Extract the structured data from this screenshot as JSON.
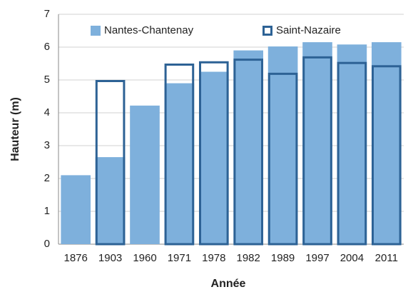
{
  "chart_data": {
    "type": "bar",
    "categories": [
      "1876",
      "1903",
      "1960",
      "1971",
      "1978",
      "1982",
      "1989",
      "1997",
      "2004",
      "2011"
    ],
    "series": [
      {
        "name": "Nantes-Chantenay",
        "color": "#7eb0dc",
        "style": "filled",
        "values": [
          2.1,
          2.65,
          4.22,
          4.9,
          5.25,
          5.9,
          6.02,
          6.15,
          6.08,
          6.15
        ]
      },
      {
        "name": "Saint-Nazaire",
        "color": "#2d6295",
        "style": "outline",
        "values": [
          null,
          5.0,
          null,
          5.5,
          5.57,
          5.65,
          5.22,
          5.72,
          5.55,
          5.45
        ]
      }
    ],
    "x_label": "Année",
    "y_label": "Hauteur (m)",
    "ylim": [
      0,
      7
    ],
    "yticks": [
      0,
      1,
      2,
      3,
      4,
      5,
      6,
      7
    ],
    "grid": true,
    "legend": "top"
  }
}
